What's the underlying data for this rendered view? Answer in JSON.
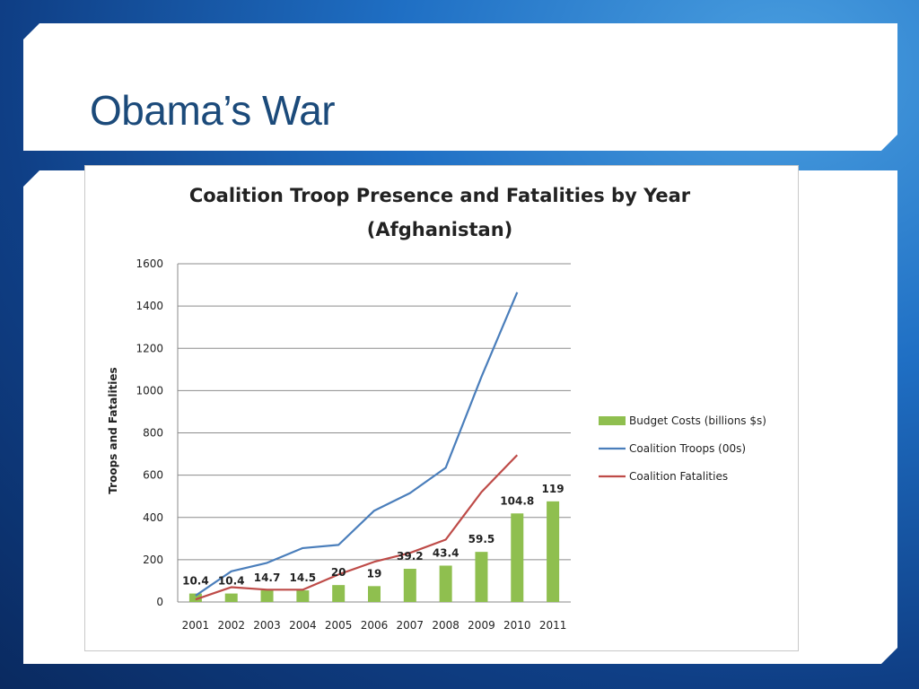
{
  "slide": {
    "title": "Obama’s War"
  },
  "chart_data": {
    "type": "bar",
    "title": "Coalition Troop Presence  and Fatalities by Year",
    "subtitle": "(Afghanistan)",
    "xlabel": "",
    "ylabel": "Troops and Fatalities",
    "ylim": [
      0,
      1600
    ],
    "yticks": [
      0,
      200,
      400,
      600,
      800,
      1000,
      1200,
      1400,
      1600
    ],
    "grid": true,
    "legend_position": "right",
    "categories": [
      "2001",
      "2002",
      "2003",
      "2004",
      "2005",
      "2006",
      "2007",
      "2008",
      "2009",
      "2010",
      "2011"
    ],
    "series": [
      {
        "name": "Budget Costs (billions $s)",
        "kind": "bar",
        "color": "#8fbf4f",
        "values": [
          40,
          40,
          55,
          55,
          80,
          75,
          157,
          172,
          237,
          419,
          476
        ],
        "labels": [
          "10.4",
          "10.4",
          "14.7",
          "14.5",
          "20",
          "19",
          "39.2",
          "43.4",
          "59.5",
          "104.8",
          "119"
        ]
      },
      {
        "name": "Coalition Troops (00s)",
        "kind": "line",
        "color": "#4a7ebb",
        "values": [
          30,
          145,
          185,
          255,
          270,
          432,
          515,
          635,
          1065,
          1465,
          null
        ]
      },
      {
        "name": "Coalition Fatalities",
        "kind": "line",
        "color": "#be4b48",
        "values": [
          12,
          70,
          58,
          58,
          130,
          190,
          232,
          295,
          520,
          695,
          null
        ]
      }
    ]
  }
}
